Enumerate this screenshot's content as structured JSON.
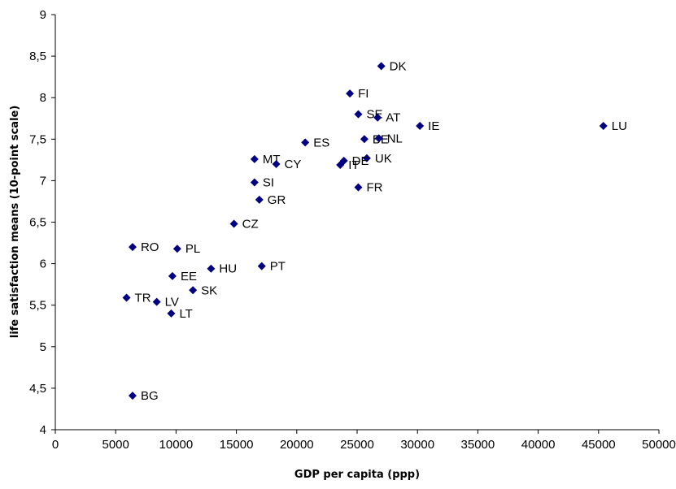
{
  "chart_data": {
    "type": "scatter",
    "xlabel": "GDP per capita (ppp)",
    "ylabel": "life satisfaction means (10-point scale)",
    "xlim": [
      0,
      50000
    ],
    "ylim": [
      4,
      9
    ],
    "x_ticks": [
      0,
      5000,
      10000,
      15000,
      20000,
      25000,
      30000,
      35000,
      40000,
      45000,
      50000
    ],
    "y_ticks": [
      "4",
      "4,5",
      "5",
      "5,5",
      "6",
      "6,5",
      "7",
      "7,5",
      "8",
      "8,5",
      "9"
    ],
    "y_tick_values": [
      4,
      4.5,
      5,
      5.5,
      6,
      6.5,
      7,
      7.5,
      8,
      8.5,
      9
    ],
    "grid": false,
    "marker": "diamond",
    "marker_color": "#000080",
    "points": [
      {
        "label": "DK",
        "x": 27000,
        "y": 8.38
      },
      {
        "label": "FI",
        "x": 24400,
        "y": 8.05
      },
      {
        "label": "SE",
        "x": 25100,
        "y": 7.8
      },
      {
        "label": "AT",
        "x": 26700,
        "y": 7.76
      },
      {
        "label": "IE",
        "x": 30200,
        "y": 7.66
      },
      {
        "label": "LU",
        "x": 45400,
        "y": 7.66
      },
      {
        "label": "BE",
        "x": 25600,
        "y": 7.5
      },
      {
        "label": "NL",
        "x": 26800,
        "y": 7.51
      },
      {
        "label": "ES",
        "x": 20700,
        "y": 7.46
      },
      {
        "label": "UK",
        "x": 25800,
        "y": 7.27
      },
      {
        "label": "DE",
        "x": 23900,
        "y": 7.24
      },
      {
        "label": "IT",
        "x": 23600,
        "y": 7.19
      },
      {
        "label": "MT",
        "x": 16500,
        "y": 7.26
      },
      {
        "label": "CY",
        "x": 18300,
        "y": 7.2
      },
      {
        "label": "SI",
        "x": 16500,
        "y": 6.98
      },
      {
        "label": "FR",
        "x": 25100,
        "y": 6.92
      },
      {
        "label": "GR",
        "x": 16900,
        "y": 6.77
      },
      {
        "label": "CZ",
        "x": 14800,
        "y": 6.48
      },
      {
        "label": "RO",
        "x": 6400,
        "y": 6.2
      },
      {
        "label": "PL",
        "x": 10100,
        "y": 6.18
      },
      {
        "label": "PT",
        "x": 17100,
        "y": 5.97
      },
      {
        "label": "HU",
        "x": 12900,
        "y": 5.94
      },
      {
        "label": "EE",
        "x": 9700,
        "y": 5.85
      },
      {
        "label": "SK",
        "x": 11400,
        "y": 5.68
      },
      {
        "label": "TR",
        "x": 5900,
        "y": 5.59
      },
      {
        "label": "LV",
        "x": 8400,
        "y": 5.54
      },
      {
        "label": "LT",
        "x": 9600,
        "y": 5.4
      },
      {
        "label": "BG",
        "x": 6400,
        "y": 4.41
      }
    ]
  }
}
